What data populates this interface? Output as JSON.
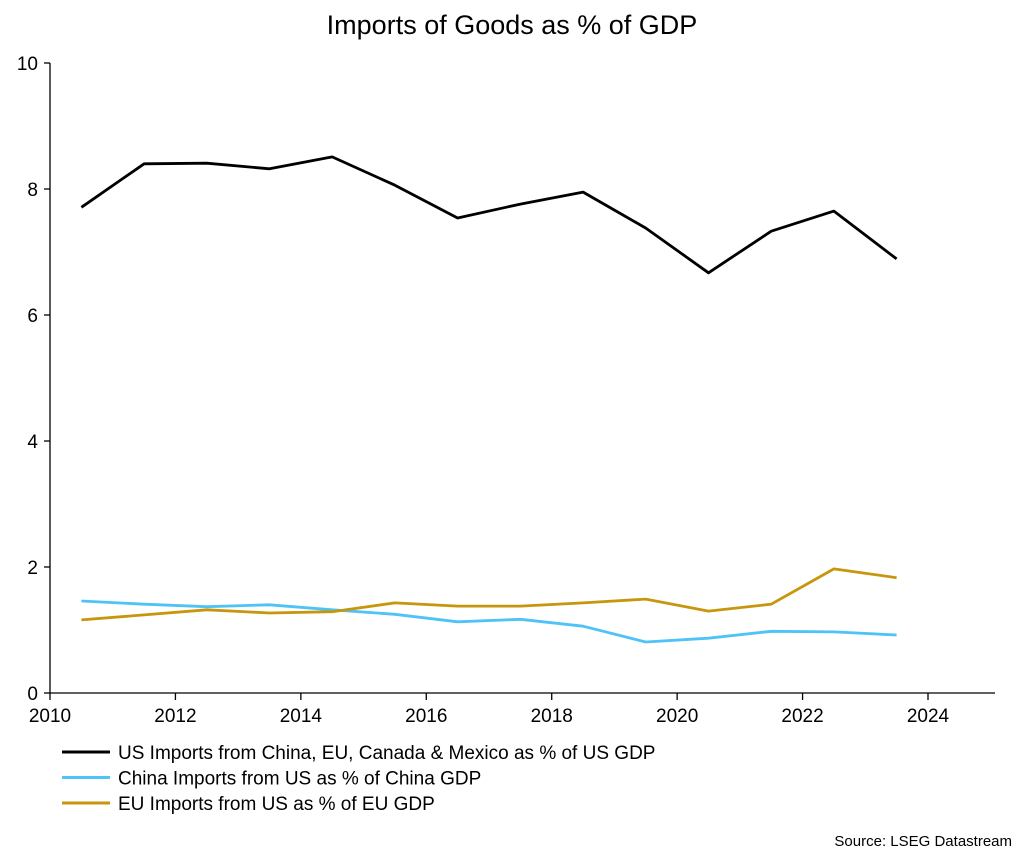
{
  "chart_data": {
    "type": "line",
    "title": "Imports of Goods as % of GDP",
    "xlabel": "",
    "ylabel": "",
    "xlim": [
      2010,
      2025.1
    ],
    "ylim": [
      0,
      10
    ],
    "xticks": [
      2010,
      2012,
      2014,
      2016,
      2018,
      2020,
      2022,
      2024
    ],
    "yticks": [
      0,
      2,
      4,
      6,
      8,
      10
    ],
    "grid": false,
    "legend_position": "bottom-left",
    "x": [
      2010.5,
      2011.5,
      2012.5,
      2013.5,
      2014.5,
      2015.5,
      2016.5,
      2017.5,
      2018.5,
      2019.5,
      2020.5,
      2021.5,
      2022.5,
      2023.5
    ],
    "series": [
      {
        "name": "US Imports from China, EU, Canada & Mexico as % of US GDP",
        "color": "#000000",
        "values": [
          7.71,
          8.4,
          8.41,
          8.32,
          8.51,
          8.06,
          7.54,
          7.76,
          7.95,
          7.38,
          6.67,
          7.33,
          7.65,
          6.89
        ]
      },
      {
        "name": "China Imports from US as % of China GDP",
        "color": "#4dc3f7",
        "values": [
          1.46,
          1.41,
          1.37,
          1.4,
          1.32,
          1.25,
          1.13,
          1.17,
          1.06,
          0.81,
          0.87,
          0.98,
          0.97,
          0.92
        ]
      },
      {
        "name": "EU Imports from US as % of EU GDP",
        "color": "#c8960c",
        "values": [
          1.16,
          1.24,
          1.32,
          1.27,
          1.29,
          1.43,
          1.38,
          1.38,
          1.43,
          1.49,
          1.3,
          1.41,
          1.97,
          1.83
        ]
      }
    ],
    "source": "Source: LSEG Datastream"
  }
}
